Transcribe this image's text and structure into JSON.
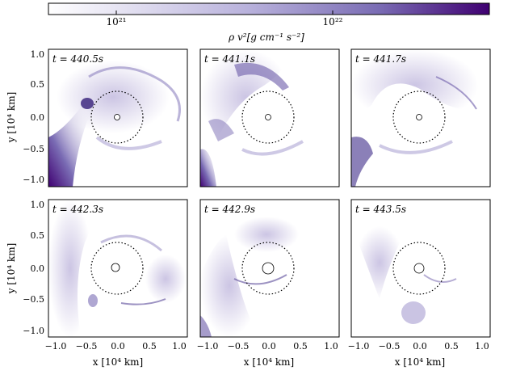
{
  "colorbar": {
    "title": "ρ v²[g cm⁻¹ s⁻²]",
    "ticks": [
      "10²¹",
      "10²²"
    ],
    "cmap": [
      "#ffffff",
      "#8e82c0",
      "#3f0071"
    ]
  },
  "axes": {
    "xlabel": "x [10⁴ km]",
    "ylabel": "y [10⁴ km]",
    "xticks": [
      "−1.0",
      "−0.5",
      "0.0",
      "0.5",
      "1.0"
    ],
    "yticks": [
      "1.0",
      "0.5",
      "0.0",
      "−0.5",
      "−1.0"
    ],
    "xrange": [
      -1.1,
      1.1
    ],
    "yrange": [
      -1.1,
      1.1
    ]
  },
  "panels": [
    {
      "time": "t = 440.5s"
    },
    {
      "time": "t = 441.1s"
    },
    {
      "time": "t = 441.7s"
    },
    {
      "time": "t = 442.3s"
    },
    {
      "time": "t = 442.9s"
    },
    {
      "time": "t = 443.5s"
    }
  ]
}
